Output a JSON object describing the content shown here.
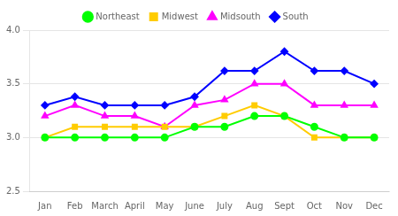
{
  "chart_data": {
    "type": "line",
    "categories": [
      "Jan",
      "Feb",
      "March",
      "April",
      "May",
      "June",
      "July",
      "Aug",
      "Sept",
      "Oct",
      "Nov",
      "Dec"
    ],
    "series": [
      {
        "name": "Northeast",
        "color": "#00ff00",
        "marker": "circle",
        "values": [
          3.0,
          3.0,
          3.0,
          3.0,
          3.0,
          3.1,
          3.1,
          3.2,
          3.2,
          3.1,
          3.0,
          3.0
        ]
      },
      {
        "name": "Midwest",
        "color": "#ffcc00",
        "marker": "square",
        "values": [
          3.0,
          3.1,
          3.1,
          3.1,
          3.1,
          3.1,
          3.2,
          3.3,
          3.2,
          3.0,
          3.0,
          3.0
        ]
      },
      {
        "name": "Midsouth",
        "color": "#ff00ff",
        "marker": "triangle",
        "values": [
          3.2,
          3.3,
          3.2,
          3.2,
          3.1,
          3.3,
          3.35,
          3.5,
          3.5,
          3.3,
          3.3,
          3.3
        ]
      },
      {
        "name": "South",
        "color": "#0000ff",
        "marker": "diamond",
        "values": [
          3.3,
          3.38,
          3.3,
          3.3,
          3.3,
          3.38,
          3.62,
          3.62,
          3.8,
          3.62,
          3.62,
          3.5
        ]
      }
    ],
    "ylim": [
      2.5,
      4.0
    ],
    "yticks": [
      2.5,
      {
        "value": 3.0,
        "label": "3.0"
      },
      3.5,
      {
        "value": 4.0,
        "label": "4.0"
      }
    ],
    "grid": "y",
    "legend": "top"
  }
}
